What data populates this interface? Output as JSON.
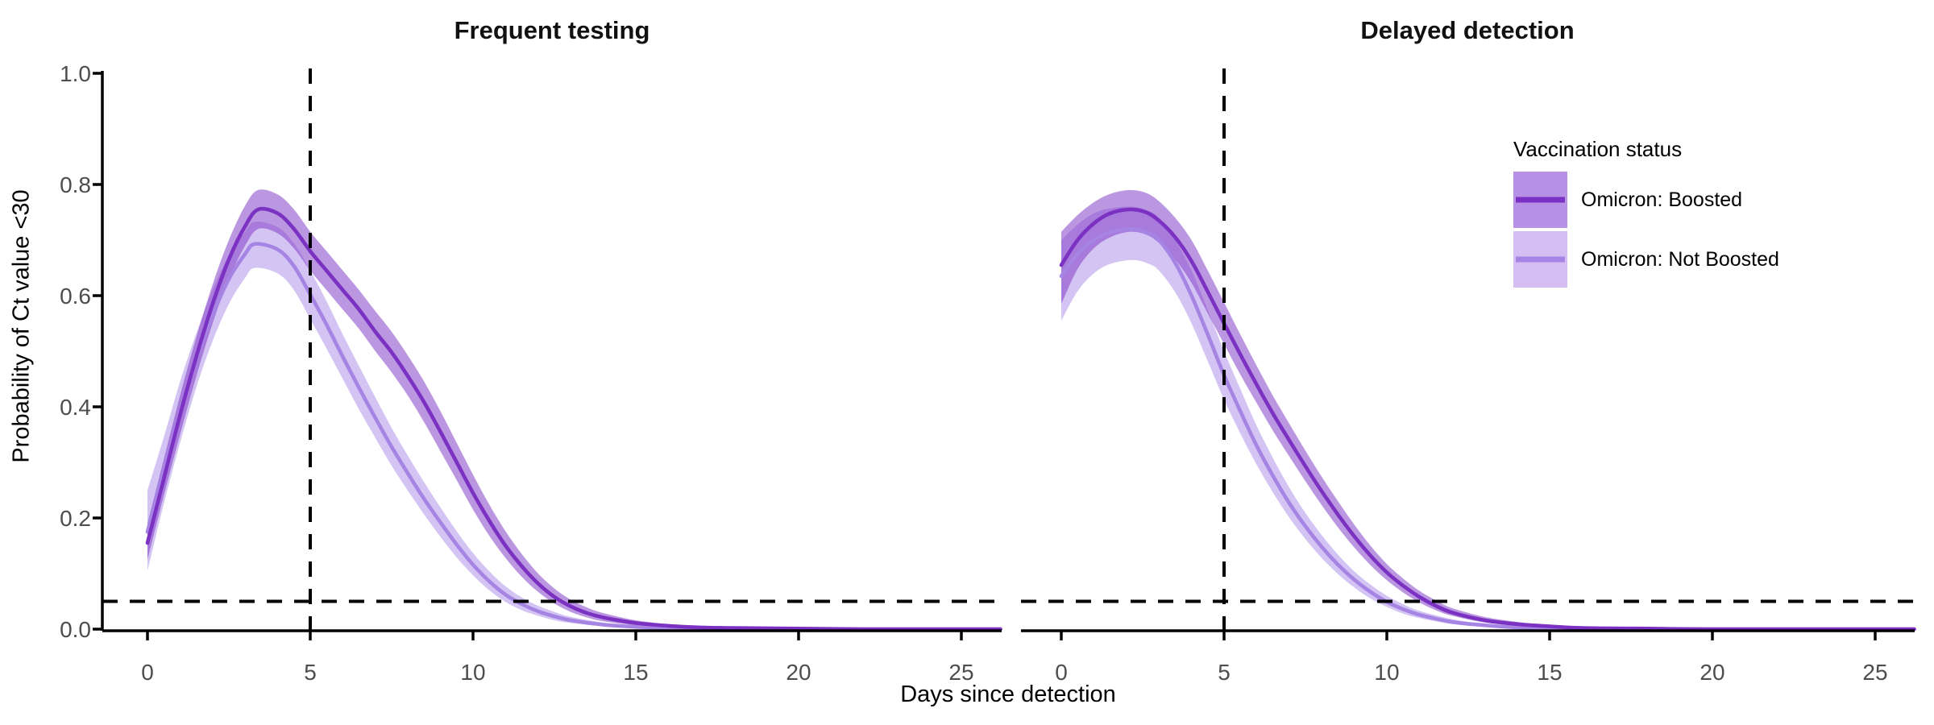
{
  "figure": {
    "background": "#ffffff",
    "x_axis_title": "Days since detection",
    "y_axis_title": "Probability of Ct value <30"
  },
  "legend": {
    "title": "Vaccination status",
    "entries": [
      {
        "label": "Omicron: Boosted",
        "line_color": "#7b31c2",
        "fill_color": "#b691e6"
      },
      {
        "label": "Omicron: Not Boosted",
        "line_color": "#a684e4",
        "fill_color": "#d3bdf2"
      }
    ]
  },
  "chart_data": {
    "type": "line",
    "title": "",
    "xlabel": "Days since detection",
    "ylabel": "Probability of Ct value <30",
    "xlim": [
      -1.4,
      26.2
    ],
    "ylim": [
      0,
      1.0
    ],
    "x_ticks": [
      0,
      5,
      10,
      15,
      20,
      25
    ],
    "x_tick_labels": [
      "0",
      "5",
      "10",
      "15",
      "20",
      "25"
    ],
    "y_ticks": [
      1.0,
      0.8,
      0.6,
      0.4,
      0.2,
      0.0
    ],
    "y_tick_labels": [
      "1.0",
      "0.8",
      "0.6",
      "0.4",
      "0.2",
      "0.0"
    ],
    "grid": false,
    "legend_position": "right-inside-top",
    "tick_label_color": "#4d4d4d",
    "axis_color": "#000000",
    "reference_lines": {
      "horizontal_y": 0.05,
      "vertical_x": 5,
      "style": "dashed",
      "color": "#000000"
    },
    "facets": [
      {
        "title": "Frequent testing",
        "series": [
          {
            "name": "Omicron: Boosted",
            "line_color": "#7b31c2",
            "ribbon_color": "#7a2fc4",
            "ribbon_opacity": 0.5,
            "points": [
              [
                0,
                0.155,
                0.125,
                0.19
              ],
              [
                0.5,
                0.27,
                0.24,
                0.305
              ],
              [
                1,
                0.385,
                0.35,
                0.42
              ],
              [
                1.5,
                0.49,
                0.455,
                0.525
              ],
              [
                2,
                0.585,
                0.55,
                0.62
              ],
              [
                2.5,
                0.665,
                0.63,
                0.7
              ],
              [
                3,
                0.725,
                0.69,
                0.762
              ],
              [
                3.4,
                0.755,
                0.72,
                0.79
              ],
              [
                4,
                0.748,
                0.712,
                0.782
              ],
              [
                4.5,
                0.72,
                0.685,
                0.755
              ],
              [
                5,
                0.68,
                0.645,
                0.715
              ],
              [
                5.5,
                0.645,
                0.61,
                0.68
              ],
              [
                6,
                0.61,
                0.575,
                0.645
              ],
              [
                6.5,
                0.575,
                0.54,
                0.61
              ],
              [
                7,
                0.535,
                0.5,
                0.572
              ],
              [
                7.5,
                0.498,
                0.462,
                0.535
              ],
              [
                8,
                0.455,
                0.42,
                0.492
              ],
              [
                8.5,
                0.408,
                0.372,
                0.445
              ],
              [
                9,
                0.355,
                0.32,
                0.392
              ],
              [
                9.5,
                0.3,
                0.268,
                0.335
              ],
              [
                10,
                0.245,
                0.215,
                0.278
              ],
              [
                10.5,
                0.195,
                0.168,
                0.224
              ],
              [
                11,
                0.15,
                0.128,
                0.176
              ],
              [
                11.5,
                0.113,
                0.094,
                0.135
              ],
              [
                12,
                0.082,
                0.067,
                0.1
              ],
              [
                12.5,
                0.058,
                0.046,
                0.073
              ],
              [
                13,
                0.041,
                0.031,
                0.053
              ],
              [
                13.5,
                0.029,
                0.021,
                0.039
              ],
              [
                14,
                0.021,
                0.014,
                0.029
              ],
              [
                15,
                0.011,
                0.007,
                0.016
              ],
              [
                16,
                0.006,
                0.003,
                0.009
              ],
              [
                17,
                0.003,
                0.002,
                0.005
              ],
              [
                18,
                0.002,
                0.001,
                0.003
              ],
              [
                20,
                0.001,
                0,
                0.002
              ],
              [
                22,
                0,
                0,
                0.001
              ],
              [
                26.2,
                0,
                0,
                0
              ]
            ]
          },
          {
            "name": "Omicron: Not Boosted",
            "line_color": "#a684e4",
            "ribbon_color": "#a98ae8",
            "ribbon_opacity": 0.5,
            "points": [
              [
                0,
                0.175,
                0.105,
                0.25
              ],
              [
                0.5,
                0.285,
                0.225,
                0.345
              ],
              [
                1,
                0.39,
                0.335,
                0.445
              ],
              [
                1.5,
                0.485,
                0.435,
                0.532
              ],
              [
                2,
                0.565,
                0.518,
                0.61
              ],
              [
                2.5,
                0.63,
                0.585,
                0.672
              ],
              [
                3,
                0.675,
                0.632,
                0.715
              ],
              [
                3.3,
                0.693,
                0.65,
                0.733
              ],
              [
                4,
                0.683,
                0.64,
                0.723
              ],
              [
                4.5,
                0.653,
                0.61,
                0.694
              ],
              [
                5,
                0.602,
                0.558,
                0.645
              ],
              [
                5.5,
                0.548,
                0.505,
                0.59
              ],
              [
                6,
                0.49,
                0.45,
                0.53
              ],
              [
                6.5,
                0.434,
                0.395,
                0.473
              ],
              [
                7,
                0.38,
                0.344,
                0.417
              ],
              [
                7.5,
                0.328,
                0.294,
                0.362
              ],
              [
                8,
                0.28,
                0.249,
                0.312
              ],
              [
                8.5,
                0.234,
                0.206,
                0.264
              ],
              [
                9,
                0.192,
                0.166,
                0.219
              ],
              [
                9.5,
                0.152,
                0.129,
                0.176
              ],
              [
                10,
                0.116,
                0.097,
                0.137
              ],
              [
                10.5,
                0.086,
                0.07,
                0.104
              ],
              [
                11,
                0.062,
                0.049,
                0.077
              ],
              [
                11.5,
                0.045,
                0.034,
                0.057
              ],
              [
                12,
                0.032,
                0.024,
                0.042
              ],
              [
                12.5,
                0.023,
                0.016,
                0.031
              ],
              [
                13,
                0.016,
                0.011,
                0.022
              ],
              [
                14,
                0.008,
                0.005,
                0.012
              ],
              [
                15,
                0.004,
                0.002,
                0.007
              ],
              [
                16,
                0.002,
                0.001,
                0.004
              ],
              [
                18,
                0.001,
                0,
                0.002
              ],
              [
                20,
                0,
                0,
                0.001
              ],
              [
                26.2,
                0,
                0,
                0
              ]
            ]
          }
        ]
      },
      {
        "title": "Delayed detection",
        "series": [
          {
            "name": "Omicron: Boosted",
            "line_color": "#7b31c2",
            "ribbon_color": "#7a2fc4",
            "ribbon_opacity": 0.5,
            "points": [
              [
                0,
                0.655,
                0.585,
                0.715
              ],
              [
                0.5,
                0.7,
                0.648,
                0.745
              ],
              [
                1,
                0.73,
                0.685,
                0.768
              ],
              [
                1.5,
                0.748,
                0.705,
                0.783
              ],
              [
                2.1,
                0.755,
                0.715,
                0.79
              ],
              [
                2.6,
                0.75,
                0.71,
                0.785
              ],
              [
                3,
                0.735,
                0.695,
                0.77
              ],
              [
                3.5,
                0.705,
                0.665,
                0.74
              ],
              [
                4,
                0.662,
                0.623,
                0.7
              ],
              [
                4.5,
                0.607,
                0.568,
                0.645
              ],
              [
                5,
                0.55,
                0.513,
                0.588
              ],
              [
                5.5,
                0.494,
                0.458,
                0.53
              ],
              [
                6,
                0.44,
                0.407,
                0.474
              ],
              [
                6.5,
                0.388,
                0.357,
                0.42
              ],
              [
                7,
                0.34,
                0.311,
                0.37
              ],
              [
                7.5,
                0.293,
                0.266,
                0.321
              ],
              [
                8,
                0.248,
                0.223,
                0.274
              ],
              [
                8.5,
                0.206,
                0.183,
                0.23
              ],
              [
                9,
                0.167,
                0.147,
                0.188
              ],
              [
                9.5,
                0.132,
                0.115,
                0.15
              ],
              [
                10,
                0.102,
                0.088,
                0.117
              ],
              [
                10.5,
                0.078,
                0.066,
                0.091
              ],
              [
                11,
                0.058,
                0.048,
                0.069
              ],
              [
                11.5,
                0.042,
                0.034,
                0.052
              ],
              [
                12,
                0.03,
                0.024,
                0.038
              ],
              [
                13,
                0.016,
                0.012,
                0.022
              ],
              [
                14,
                0.009,
                0.006,
                0.013
              ],
              [
                15,
                0.005,
                0.003,
                0.007
              ],
              [
                16,
                0.002,
                0.001,
                0.004
              ],
              [
                18,
                0.001,
                0,
                0.002
              ],
              [
                20,
                0,
                0,
                0.001
              ],
              [
                26.2,
                0,
                0,
                0
              ]
            ]
          },
          {
            "name": "Omicron: Not Boosted",
            "line_color": "#a684e4",
            "ribbon_color": "#a98ae8",
            "ribbon_opacity": 0.5,
            "points": [
              [
                0,
                0.635,
                0.555,
                0.7
              ],
              [
                0.5,
                0.675,
                0.608,
                0.728
              ],
              [
                1,
                0.7,
                0.64,
                0.748
              ],
              [
                1.5,
                0.714,
                0.657,
                0.757
              ],
              [
                2.2,
                0.72,
                0.664,
                0.76
              ],
              [
                2.7,
                0.712,
                0.657,
                0.752
              ],
              [
                3,
                0.7,
                0.645,
                0.74
              ],
              [
                3.5,
                0.659,
                0.606,
                0.7
              ],
              [
                4,
                0.6,
                0.55,
                0.645
              ],
              [
                4.5,
                0.53,
                0.482,
                0.574
              ],
              [
                5,
                0.457,
                0.413,
                0.5
              ],
              [
                5.5,
                0.392,
                0.352,
                0.432
              ],
              [
                6,
                0.33,
                0.296,
                0.366
              ],
              [
                6.5,
                0.276,
                0.246,
                0.308
              ],
              [
                7,
                0.227,
                0.201,
                0.255
              ],
              [
                7.5,
                0.185,
                0.162,
                0.209
              ],
              [
                8,
                0.148,
                0.128,
                0.169
              ],
              [
                8.5,
                0.116,
                0.099,
                0.134
              ],
              [
                9,
                0.089,
                0.075,
                0.104
              ],
              [
                9.5,
                0.067,
                0.055,
                0.08
              ],
              [
                10,
                0.049,
                0.04,
                0.06
              ],
              [
                10.5,
                0.036,
                0.028,
                0.045
              ],
              [
                11,
                0.026,
                0.02,
                0.033
              ],
              [
                12,
                0.013,
                0.009,
                0.018
              ],
              [
                13,
                0.007,
                0.004,
                0.01
              ],
              [
                14,
                0.003,
                0.002,
                0.006
              ],
              [
                15,
                0.002,
                0.001,
                0.003
              ],
              [
                16,
                0.001,
                0,
                0.002
              ],
              [
                18,
                0,
                0,
                0.001
              ],
              [
                26.2,
                0,
                0,
                0
              ]
            ]
          }
        ]
      }
    ]
  }
}
